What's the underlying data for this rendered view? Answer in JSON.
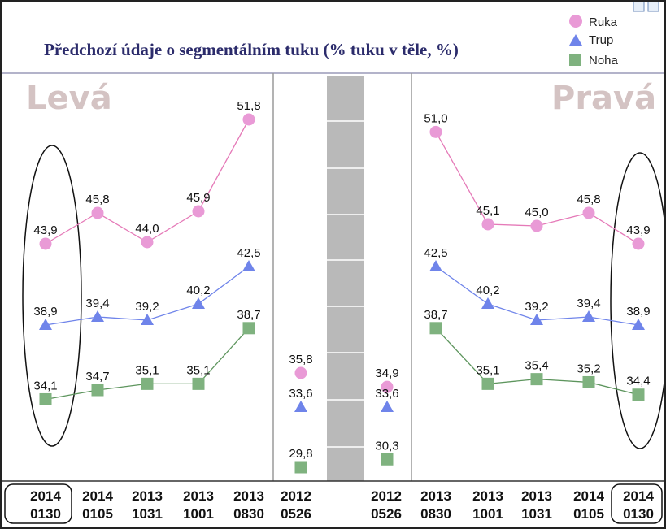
{
  "title": "Předchozí údaje o segmentálním tuku (% tuku v těle, %)",
  "left_label": "Levá",
  "right_label": "Pravá",
  "colors": {
    "ruka": "#e99ad6",
    "ruka_line": "#e57ab8",
    "trup": "#6f84ea",
    "noha": "#7fb27f",
    "noha_line": "#5d955d",
    "divider": "#9a9a9a",
    "bar": "#b9b9b9"
  },
  "legend": [
    {
      "name": "Ruka",
      "marker": "circle"
    },
    {
      "name": "Trup",
      "marker": "triangle"
    },
    {
      "name": "Noha",
      "marker": "square"
    }
  ],
  "chart_data": [
    {
      "type": "line",
      "panel": "left",
      "categories": [
        "2014\n0130",
        "2014\n0105",
        "2013\n1031",
        "2013\n1001",
        "2013\n0830"
      ],
      "series": [
        {
          "name": "Ruka",
          "values": [
            43.9,
            45.8,
            44.0,
            45.9,
            51.8
          ],
          "labels": [
            "43,9",
            "45,8",
            "44,0",
            "45,9",
            "51,8"
          ]
        },
        {
          "name": "Trup",
          "values": [
            38.9,
            39.4,
            39.2,
            40.2,
            42.5
          ],
          "labels": [
            "38,9",
            "39,4",
            "39,2",
            "40,2",
            "42,5"
          ]
        },
        {
          "name": "Noha",
          "values": [
            34.1,
            34.7,
            35.1,
            35.1,
            38.7
          ],
          "labels": [
            "34,1",
            "34,7",
            "35,1",
            "35,1",
            "38,7"
          ]
        }
      ]
    },
    {
      "type": "scatter",
      "panel": "middle",
      "categories": [
        "2012\n0526",
        "2012\n0526"
      ],
      "series": [
        {
          "name": "Ruka",
          "values": [
            35.8,
            34.9
          ],
          "labels": [
            "35,8",
            "34,9"
          ]
        },
        {
          "name": "Trup",
          "values": [
            33.6,
            33.6
          ],
          "labels": [
            "33,6",
            "33,6"
          ]
        },
        {
          "name": "Noha",
          "values": [
            29.8,
            30.3
          ],
          "labels": [
            "29,8",
            "30,3"
          ]
        }
      ]
    },
    {
      "type": "line",
      "panel": "right",
      "categories": [
        "2013\n0830",
        "2013\n1001",
        "2013\n1031",
        "2014\n0105",
        "2014\n0130"
      ],
      "series": [
        {
          "name": "Ruka",
          "values": [
            51.0,
            45.1,
            45.0,
            45.8,
            43.9
          ],
          "labels": [
            "51,0",
            "45,1",
            "45,0",
            "45,8",
            "43,9"
          ]
        },
        {
          "name": "Trup",
          "values": [
            42.5,
            40.2,
            39.2,
            39.4,
            38.9
          ],
          "labels": [
            "42,5",
            "40,2",
            "39,2",
            "39,4",
            "38,9"
          ]
        },
        {
          "name": "Noha",
          "values": [
            38.7,
            35.1,
            35.4,
            35.2,
            34.4
          ],
          "labels": [
            "38,7",
            "35,1",
            "35,4",
            "35,2",
            "34,4"
          ]
        }
      ]
    }
  ]
}
